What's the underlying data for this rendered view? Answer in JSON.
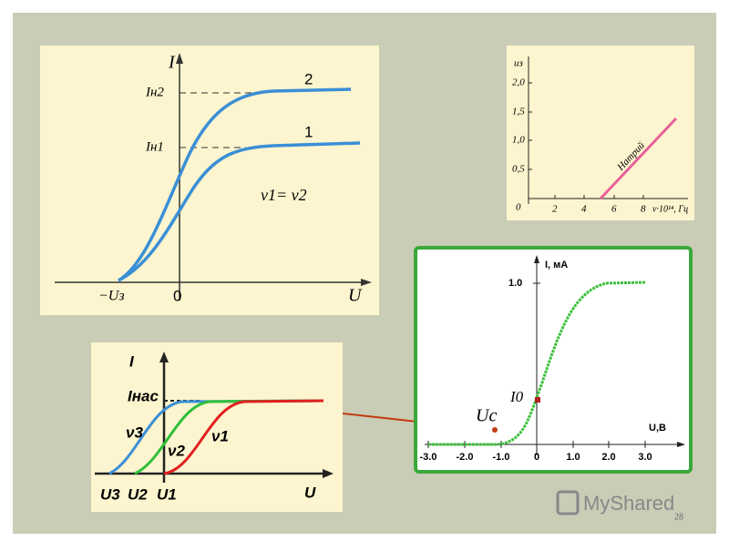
{
  "slide_number": "28",
  "logo": "MyShared",
  "panel_saturation": {
    "y_axis": "I",
    "i_sat_2": "Iн2",
    "i_sat_1": "Iн1",
    "curve_2": "2",
    "curve_1": "1",
    "frequency_note": "ν1= ν2",
    "stop_voltage": "−Uз",
    "origin": "0",
    "x_axis": "U"
  },
  "panel_sodium": {
    "y_axis": "uз",
    "y_ticks": [
      "2,0",
      "1,5",
      "1,0",
      "0,5"
    ],
    "origin": "0",
    "x_ticks": [
      "2",
      "4",
      "6",
      "8"
    ],
    "x_axis": "ν·10¹⁴, Гц",
    "line_label": "Натрий"
  },
  "panel_frequencies": {
    "y_axis": "I",
    "i_sat": "Iнас",
    "nu_3": "ν3",
    "nu_2": "ν2",
    "nu_1": "ν1",
    "u_3": "U3",
    "u_2": "U2",
    "u_1": "U1",
    "x_axis": "U"
  },
  "panel_measured": {
    "y_axis": "I, мА",
    "y_tick": "1.0",
    "i_zero": "I0",
    "u_stop": "Uс",
    "x_axis": "U,B",
    "x_ticks": [
      "-3.0",
      "-2.0",
      "-1.0",
      "0",
      "1.0",
      "2.0",
      "3.0"
    ]
  }
}
